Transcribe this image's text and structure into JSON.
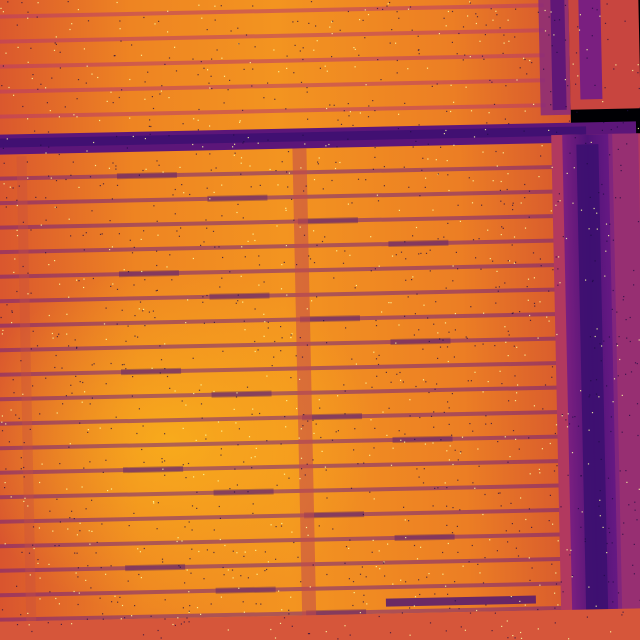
{
  "image": {
    "description_free": true,
    "colormap": "inferno",
    "palette": {
      "background": "#000004",
      "deep": "#3b0f70",
      "dark": "#6a1a85",
      "mid": "#b83a6a",
      "warm": "#e8652a",
      "hot": "#f59a1c",
      "peak": "#fbb61a",
      "speck_light": "#fcffa4",
      "speck_dark": "#1b0c41"
    }
  }
}
